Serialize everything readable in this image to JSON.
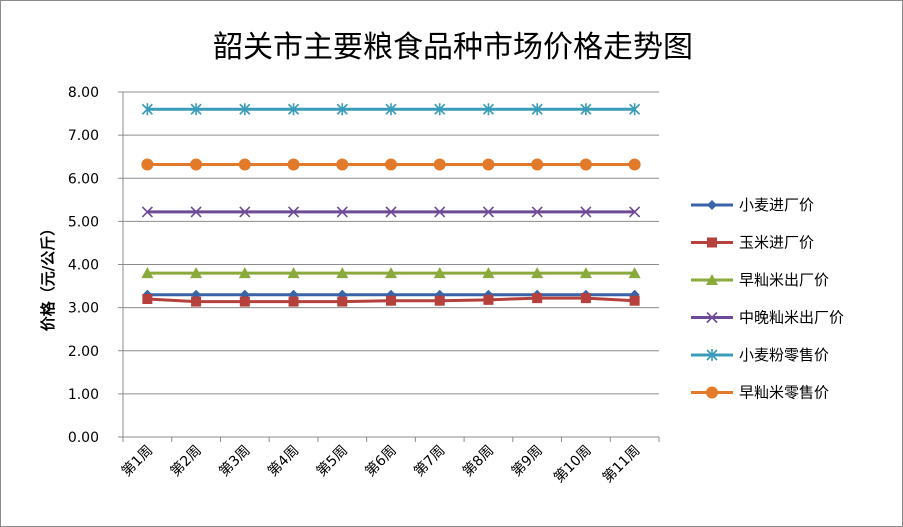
{
  "chart_data": {
    "type": "line",
    "title": "韶关市主要粮食品种市场价格走势图",
    "xlabel": "",
    "ylabel": "价格（元/公斤）",
    "ylim": [
      0,
      8
    ],
    "yticks": [
      "0.00",
      "1.00",
      "2.00",
      "3.00",
      "4.00",
      "5.00",
      "6.00",
      "7.00",
      "8.00"
    ],
    "categories": [
      "第1周",
      "第2周",
      "第3周",
      "第4周",
      "第5周",
      "第6周",
      "第7周",
      "第8周",
      "第9周",
      "第10周",
      "第11周"
    ],
    "legend_position": "right",
    "series": [
      {
        "name": "小麦进厂价",
        "color": "#3a64a8",
        "marker": "diamond",
        "values": [
          3.3,
          3.3,
          3.3,
          3.3,
          3.3,
          3.3,
          3.3,
          3.3,
          3.3,
          3.3,
          3.3
        ]
      },
      {
        "name": "玉米进厂价",
        "color": "#b6403c",
        "marker": "square",
        "values": [
          3.2,
          3.14,
          3.14,
          3.14,
          3.14,
          3.16,
          3.16,
          3.18,
          3.22,
          3.22,
          3.16
        ]
      },
      {
        "name": "早籼米出厂价",
        "color": "#8aaa3c",
        "marker": "triangle",
        "values": [
          3.8,
          3.8,
          3.8,
          3.8,
          3.8,
          3.8,
          3.8,
          3.8,
          3.8,
          3.8,
          3.8
        ]
      },
      {
        "name": "中晚籼米出厂价",
        "color": "#6e4a96",
        "marker": "x",
        "values": [
          5.22,
          5.22,
          5.22,
          5.22,
          5.22,
          5.22,
          5.22,
          5.22,
          5.22,
          5.22,
          5.22
        ]
      },
      {
        "name": "小麦粉零售价",
        "color": "#3a9cb8",
        "marker": "asterisk",
        "values": [
          7.6,
          7.6,
          7.6,
          7.6,
          7.6,
          7.6,
          7.6,
          7.6,
          7.6,
          7.6,
          7.6
        ]
      },
      {
        "name": "早籼米零售价",
        "color": "#e37a2a",
        "marker": "circle",
        "values": [
          6.32,
          6.32,
          6.32,
          6.32,
          6.32,
          6.32,
          6.32,
          6.32,
          6.32,
          6.32,
          6.32
        ]
      }
    ]
  }
}
